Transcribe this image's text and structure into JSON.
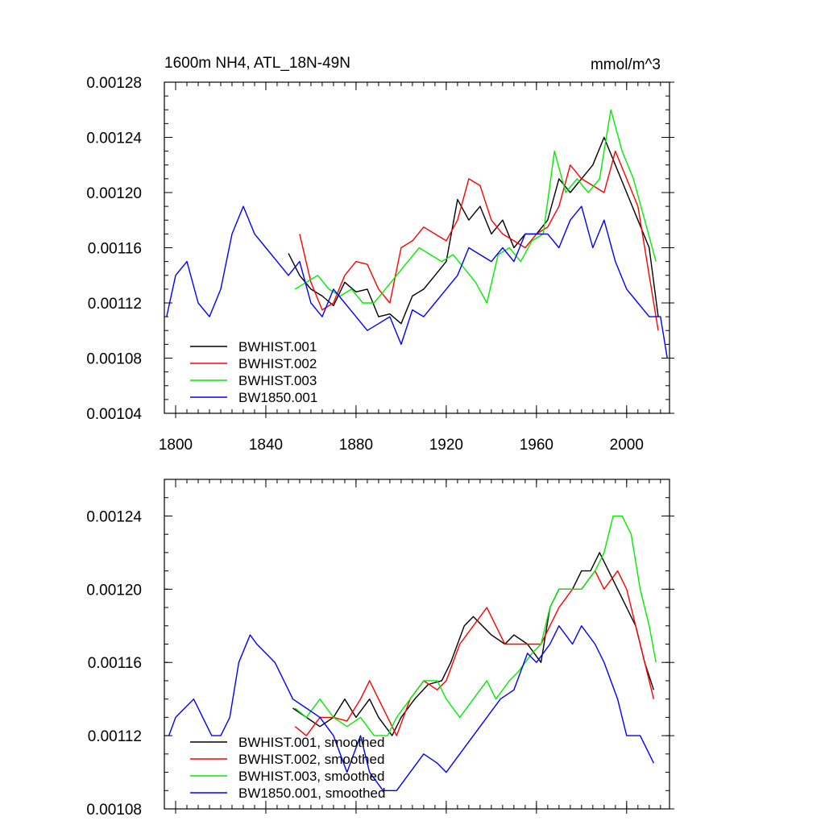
{
  "chart_data": [
    {
      "type": "line",
      "title": "1600m NH4, ATL_18N-49N",
      "units_label": "mmol/m^3",
      "xlim": [
        1795,
        2019
      ],
      "ylim": [
        0.00104,
        0.00128
      ],
      "x_ticks": [
        1800,
        1840,
        1880,
        1920,
        1960,
        2000
      ],
      "x_tick_labels": [
        "1800",
        "1840",
        "1880",
        "1920",
        "1960",
        "2000"
      ],
      "y_ticks": [
        0.00104,
        0.00108,
        0.00112,
        0.00116,
        0.0012,
        0.00124,
        0.00128
      ],
      "y_tick_labels": [
        "0.00104",
        "0.00108",
        "0.00112",
        "0.00116",
        "0.00120",
        "0.00124",
        "0.00128"
      ],
      "legend_position": "bottom-left",
      "series": [
        {
          "name": "BWHIST.001",
          "color": "#000000",
          "x": [
            1850,
            1855,
            1860,
            1865,
            1870,
            1875,
            1880,
            1885,
            1890,
            1895,
            1900,
            1905,
            1910,
            1915,
            1920,
            1925,
            1930,
            1935,
            1940,
            1945,
            1950,
            1955,
            1960,
            1965,
            1970,
            1975,
            1980,
            1985,
            1990,
            1995,
            2000,
            2005,
            2010,
            2014
          ],
          "y": [
            0.001156,
            0.00114,
            0.00113,
            0.001125,
            0.001118,
            0.001135,
            0.001128,
            0.00113,
            0.00111,
            0.001112,
            0.001105,
            0.001125,
            0.00113,
            0.00114,
            0.00115,
            0.001195,
            0.00118,
            0.00119,
            0.00117,
            0.00118,
            0.00116,
            0.00117,
            0.00117,
            0.00118,
            0.00121,
            0.0012,
            0.00121,
            0.00122,
            0.00124,
            0.00122,
            0.0012,
            0.00118,
            0.00116,
            0.00111
          ]
        },
        {
          "name": "BWHIST.002",
          "color": "#ff0000",
          "x": [
            1855,
            1860,
            1865,
            1870,
            1875,
            1880,
            1885,
            1890,
            1895,
            1900,
            1905,
            1910,
            1915,
            1920,
            1925,
            1930,
            1935,
            1940,
            1945,
            1950,
            1955,
            1960,
            1965,
            1970,
            1975,
            1980,
            1985,
            1990,
            1995,
            2000,
            2005,
            2010,
            2014
          ],
          "y": [
            0.00117,
            0.001135,
            0.001115,
            0.00112,
            0.00114,
            0.00115,
            0.001148,
            0.00113,
            0.00112,
            0.00116,
            0.001165,
            0.001175,
            0.00117,
            0.001165,
            0.00118,
            0.00121,
            0.001205,
            0.00118,
            0.00117,
            0.001165,
            0.00116,
            0.00117,
            0.001175,
            0.00119,
            0.00122,
            0.00121,
            0.001205,
            0.0012,
            0.00123,
            0.00121,
            0.00119,
            0.00114,
            0.0011
          ]
        },
        {
          "name": "BWHIST.003",
          "color": "#00ee00",
          "x": [
            1853,
            1858,
            1863,
            1868,
            1873,
            1878,
            1883,
            1888,
            1893,
            1898,
            1903,
            1908,
            1913,
            1918,
            1923,
            1928,
            1933,
            1938,
            1943,
            1948,
            1953,
            1958,
            1963,
            1968,
            1973,
            1978,
            1983,
            1988,
            1993,
            1998,
            2003,
            2008,
            2013
          ],
          "y": [
            0.00113,
            0.001135,
            0.00114,
            0.00113,
            0.001125,
            0.00113,
            0.00112,
            0.00112,
            0.00113,
            0.00114,
            0.00115,
            0.00116,
            0.001155,
            0.00115,
            0.001155,
            0.001145,
            0.001135,
            0.00112,
            0.001155,
            0.00116,
            0.00115,
            0.001165,
            0.00117,
            0.00123,
            0.0012,
            0.00121,
            0.0012,
            0.00121,
            0.00126,
            0.00123,
            0.00121,
            0.00118,
            0.00115
          ]
        },
        {
          "name": "BW1850.001",
          "color": "#0000ff",
          "x": [
            1796,
            1800,
            1805,
            1810,
            1815,
            1820,
            1825,
            1830,
            1835,
            1840,
            1845,
            1850,
            1855,
            1860,
            1865,
            1870,
            1875,
            1880,
            1885,
            1890,
            1895,
            1900,
            1905,
            1910,
            1915,
            1920,
            1925,
            1930,
            1935,
            1940,
            1945,
            1950,
            1955,
            1960,
            1965,
            1970,
            1975,
            1980,
            1985,
            1990,
            1995,
            2000,
            2005,
            2010,
            2015,
            2018
          ],
          "y": [
            0.00111,
            0.00114,
            0.00115,
            0.00112,
            0.00111,
            0.00113,
            0.00117,
            0.00119,
            0.00117,
            0.00116,
            0.00115,
            0.00114,
            0.00115,
            0.00112,
            0.00111,
            0.00113,
            0.00112,
            0.00111,
            0.0011,
            0.001105,
            0.00111,
            0.00109,
            0.001115,
            0.00111,
            0.00112,
            0.00113,
            0.00114,
            0.00116,
            0.001155,
            0.00115,
            0.00116,
            0.00115,
            0.00117,
            0.00117,
            0.00117,
            0.00116,
            0.00118,
            0.00119,
            0.00116,
            0.00118,
            0.00115,
            0.00113,
            0.00112,
            0.00111,
            0.00111,
            0.00108
          ]
        }
      ]
    },
    {
      "type": "line",
      "xlim": [
        1795,
        2019
      ],
      "ylim": [
        0.00108,
        0.00126
      ],
      "x_ticks": [
        1800,
        1840,
        1880,
        1920,
        1960,
        2000
      ],
      "y_ticks": [
        0.00108,
        0.00112,
        0.00116,
        0.0012,
        0.00124
      ],
      "y_tick_labels": [
        "0.00108",
        "0.00112",
        "0.00116",
        "0.00120",
        "0.00124"
      ],
      "legend_position": "bottom-left",
      "series": [
        {
          "name": "BWHIST.001, smoothed",
          "color": "#000000",
          "x": [
            1852,
            1858,
            1864,
            1870,
            1875,
            1880,
            1886,
            1890,
            1896,
            1900,
            1906,
            1912,
            1918,
            1922,
            1928,
            1932,
            1936,
            1940,
            1946,
            1950,
            1956,
            1962,
            1966,
            1970,
            1976,
            1980,
            1984,
            1988,
            1992,
            1996,
            2000,
            2004,
            2008,
            2012
          ],
          "y": [
            0.001135,
            0.00113,
            0.001125,
            0.00113,
            0.00114,
            0.00113,
            0.00114,
            0.00113,
            0.00112,
            0.00113,
            0.00114,
            0.001148,
            0.00115,
            0.00116,
            0.00118,
            0.001185,
            0.00118,
            0.001175,
            0.00117,
            0.001175,
            0.00117,
            0.00116,
            0.00119,
            0.0012,
            0.0012,
            0.00121,
            0.00121,
            0.00122,
            0.00121,
            0.0012,
            0.00119,
            0.00118,
            0.00116,
            0.001145
          ]
        },
        {
          "name": "BWHIST.002, smoothed",
          "color": "#ff0000",
          "x": [
            1853,
            1858,
            1864,
            1870,
            1876,
            1882,
            1886,
            1890,
            1894,
            1898,
            1904,
            1910,
            1916,
            1920,
            1926,
            1932,
            1938,
            1942,
            1946,
            1950,
            1956,
            1962,
            1966,
            1970,
            1976,
            1980,
            1986,
            1990,
            1996,
            2000,
            2004,
            2008,
            2012
          ],
          "y": [
            0.001125,
            0.00112,
            0.00113,
            0.00113,
            0.001128,
            0.00114,
            0.00115,
            0.00114,
            0.00113,
            0.00112,
            0.00114,
            0.00115,
            0.001145,
            0.00115,
            0.00117,
            0.00118,
            0.00119,
            0.00118,
            0.00117,
            0.00117,
            0.00117,
            0.00117,
            0.00118,
            0.00119,
            0.0012,
            0.0012,
            0.00121,
            0.0012,
            0.00121,
            0.0012,
            0.00118,
            0.00116,
            0.00114
          ]
        },
        {
          "name": "BWHIST.003, smoothed",
          "color": "#00ee00",
          "x": [
            1853,
            1858,
            1864,
            1870,
            1876,
            1882,
            1888,
            1894,
            1898,
            1904,
            1910,
            1916,
            1920,
            1926,
            1932,
            1938,
            1942,
            1948,
            1952,
            1958,
            1962,
            1966,
            1970,
            1976,
            1980,
            1986,
            1990,
            1994,
            1998,
            2002,
            2006,
            2010,
            2013
          ],
          "y": [
            0.001135,
            0.00113,
            0.00114,
            0.00113,
            0.001125,
            0.00113,
            0.00112,
            0.00112,
            0.00113,
            0.00114,
            0.00115,
            0.00115,
            0.00114,
            0.00113,
            0.00114,
            0.00115,
            0.00114,
            0.00115,
            0.001155,
            0.001165,
            0.00117,
            0.00119,
            0.0012,
            0.0012,
            0.0012,
            0.00121,
            0.00122,
            0.00124,
            0.00124,
            0.00123,
            0.0012,
            0.00118,
            0.00116
          ]
        },
        {
          "name": "BW1850.001, smoothed",
          "color": "#0000ff",
          "x": [
            1797,
            1800,
            1804,
            1808,
            1812,
            1816,
            1820,
            1824,
            1828,
            1833,
            1836,
            1840,
            1844,
            1848,
            1852,
            1858,
            1864,
            1870,
            1876,
            1882,
            1886,
            1892,
            1898,
            1904,
            1910,
            1916,
            1920,
            1926,
            1932,
            1938,
            1944,
            1950,
            1956,
            1960,
            1966,
            1970,
            1976,
            1980,
            1986,
            1990,
            1996,
            2000,
            2006,
            2012
          ],
          "y": [
            0.00112,
            0.00113,
            0.001135,
            0.00114,
            0.00113,
            0.00112,
            0.00112,
            0.00113,
            0.00116,
            0.001175,
            0.00117,
            0.001165,
            0.00116,
            0.00115,
            0.00114,
            0.001135,
            0.00113,
            0.00112,
            0.0011,
            0.00112,
            0.0011,
            0.00109,
            0.00109,
            0.0011,
            0.00111,
            0.001105,
            0.0011,
            0.00111,
            0.00112,
            0.00113,
            0.00114,
            0.001145,
            0.001165,
            0.00116,
            0.00117,
            0.00118,
            0.00117,
            0.00118,
            0.00117,
            0.00116,
            0.00114,
            0.00112,
            0.00112,
            0.001105
          ]
        }
      ]
    }
  ]
}
